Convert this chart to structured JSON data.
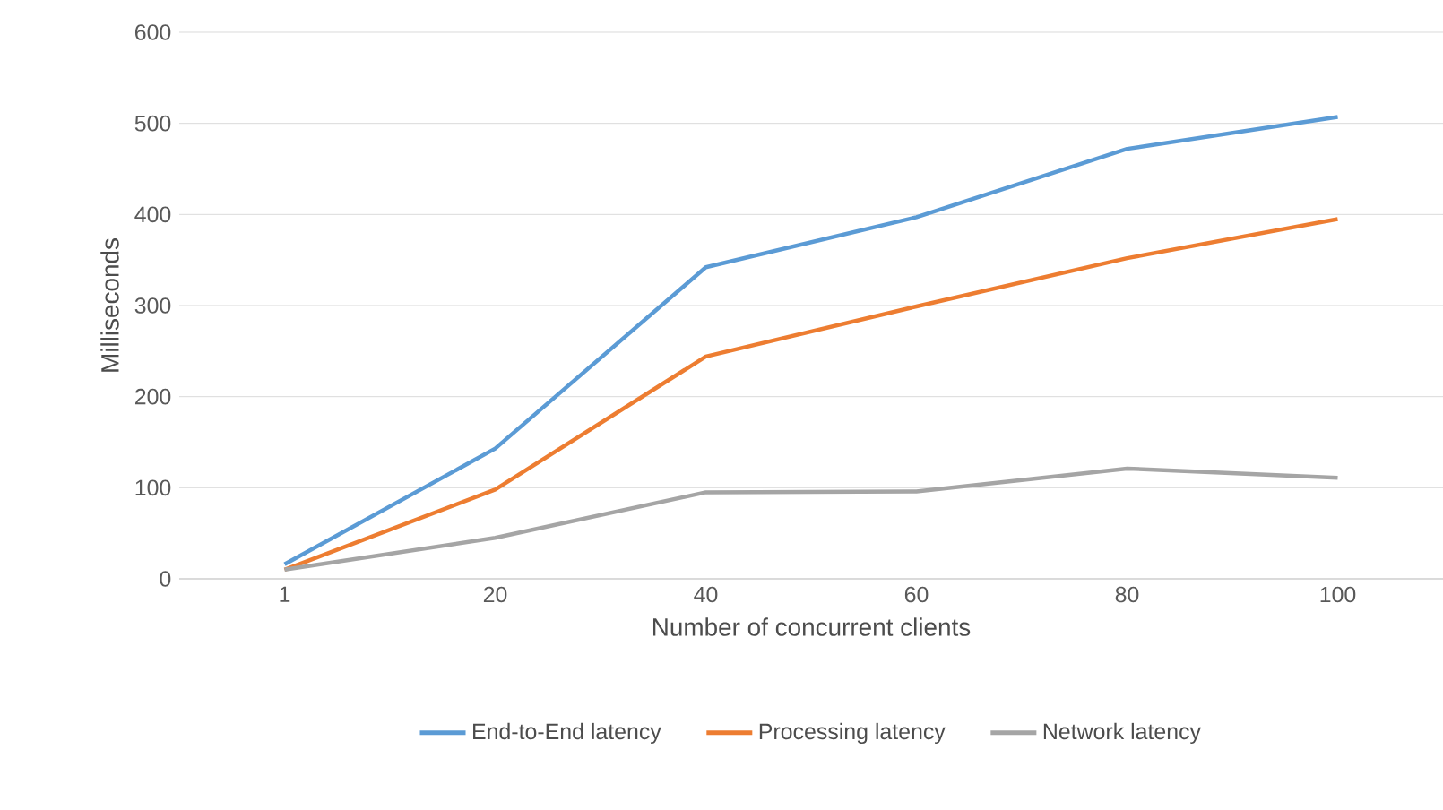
{
  "chart_data": {
    "type": "line",
    "xlabel": "Number of concurrent clients",
    "ylabel": "Milliseconds",
    "categories": [
      "1",
      "20",
      "40",
      "60",
      "80",
      "100"
    ],
    "series": [
      {
        "name": "End-to-End latency",
        "color": "#5b9bd5",
        "values": [
          16,
          143,
          342,
          397,
          472,
          507
        ]
      },
      {
        "name": "Processing latency",
        "color": "#ed7d31",
        "values": [
          10,
          98,
          244,
          299,
          352,
          395
        ]
      },
      {
        "name": "Network latency",
        "color": "#a5a5a5",
        "values": [
          10,
          45,
          95,
          96,
          121,
          111
        ]
      }
    ],
    "ylim": [
      0,
      600
    ],
    "yticks": [
      0,
      100,
      200,
      300,
      400,
      500,
      600
    ],
    "grid": "y",
    "legend": "bottom",
    "marker": "none",
    "line_style": "solid"
  }
}
